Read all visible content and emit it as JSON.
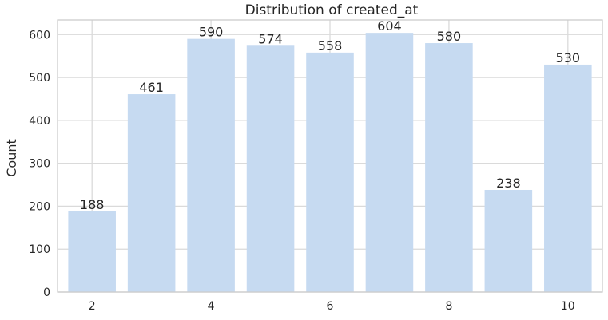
{
  "chart_data": {
    "type": "bar",
    "title": "Distribution of created_at",
    "xlabel": "",
    "ylabel": "Count",
    "x": [
      2,
      3,
      4,
      5,
      6,
      7,
      8,
      9,
      10
    ],
    "values": [
      188,
      461,
      590,
      574,
      558,
      604,
      580,
      238,
      530
    ],
    "data_labels": [
      "188",
      "461",
      "590",
      "574",
      "558",
      "604",
      "580",
      "238",
      "530"
    ],
    "xticks": [
      2,
      4,
      6,
      8,
      10
    ],
    "xtick_labels": [
      "2",
      "4",
      "6",
      "8",
      "10"
    ],
    "yticks": [
      0,
      100,
      200,
      300,
      400,
      500,
      600
    ],
    "ytick_labels": [
      "0",
      "100",
      "200",
      "300",
      "400",
      "500",
      "600"
    ],
    "xlim": [
      1.42,
      10.58
    ],
    "ylim": [
      0,
      634
    ],
    "grid": true,
    "colors": {
      "bar": "#c6daf1",
      "grid": "#dadada",
      "frame": "#cccccc",
      "text": "#262626"
    }
  }
}
